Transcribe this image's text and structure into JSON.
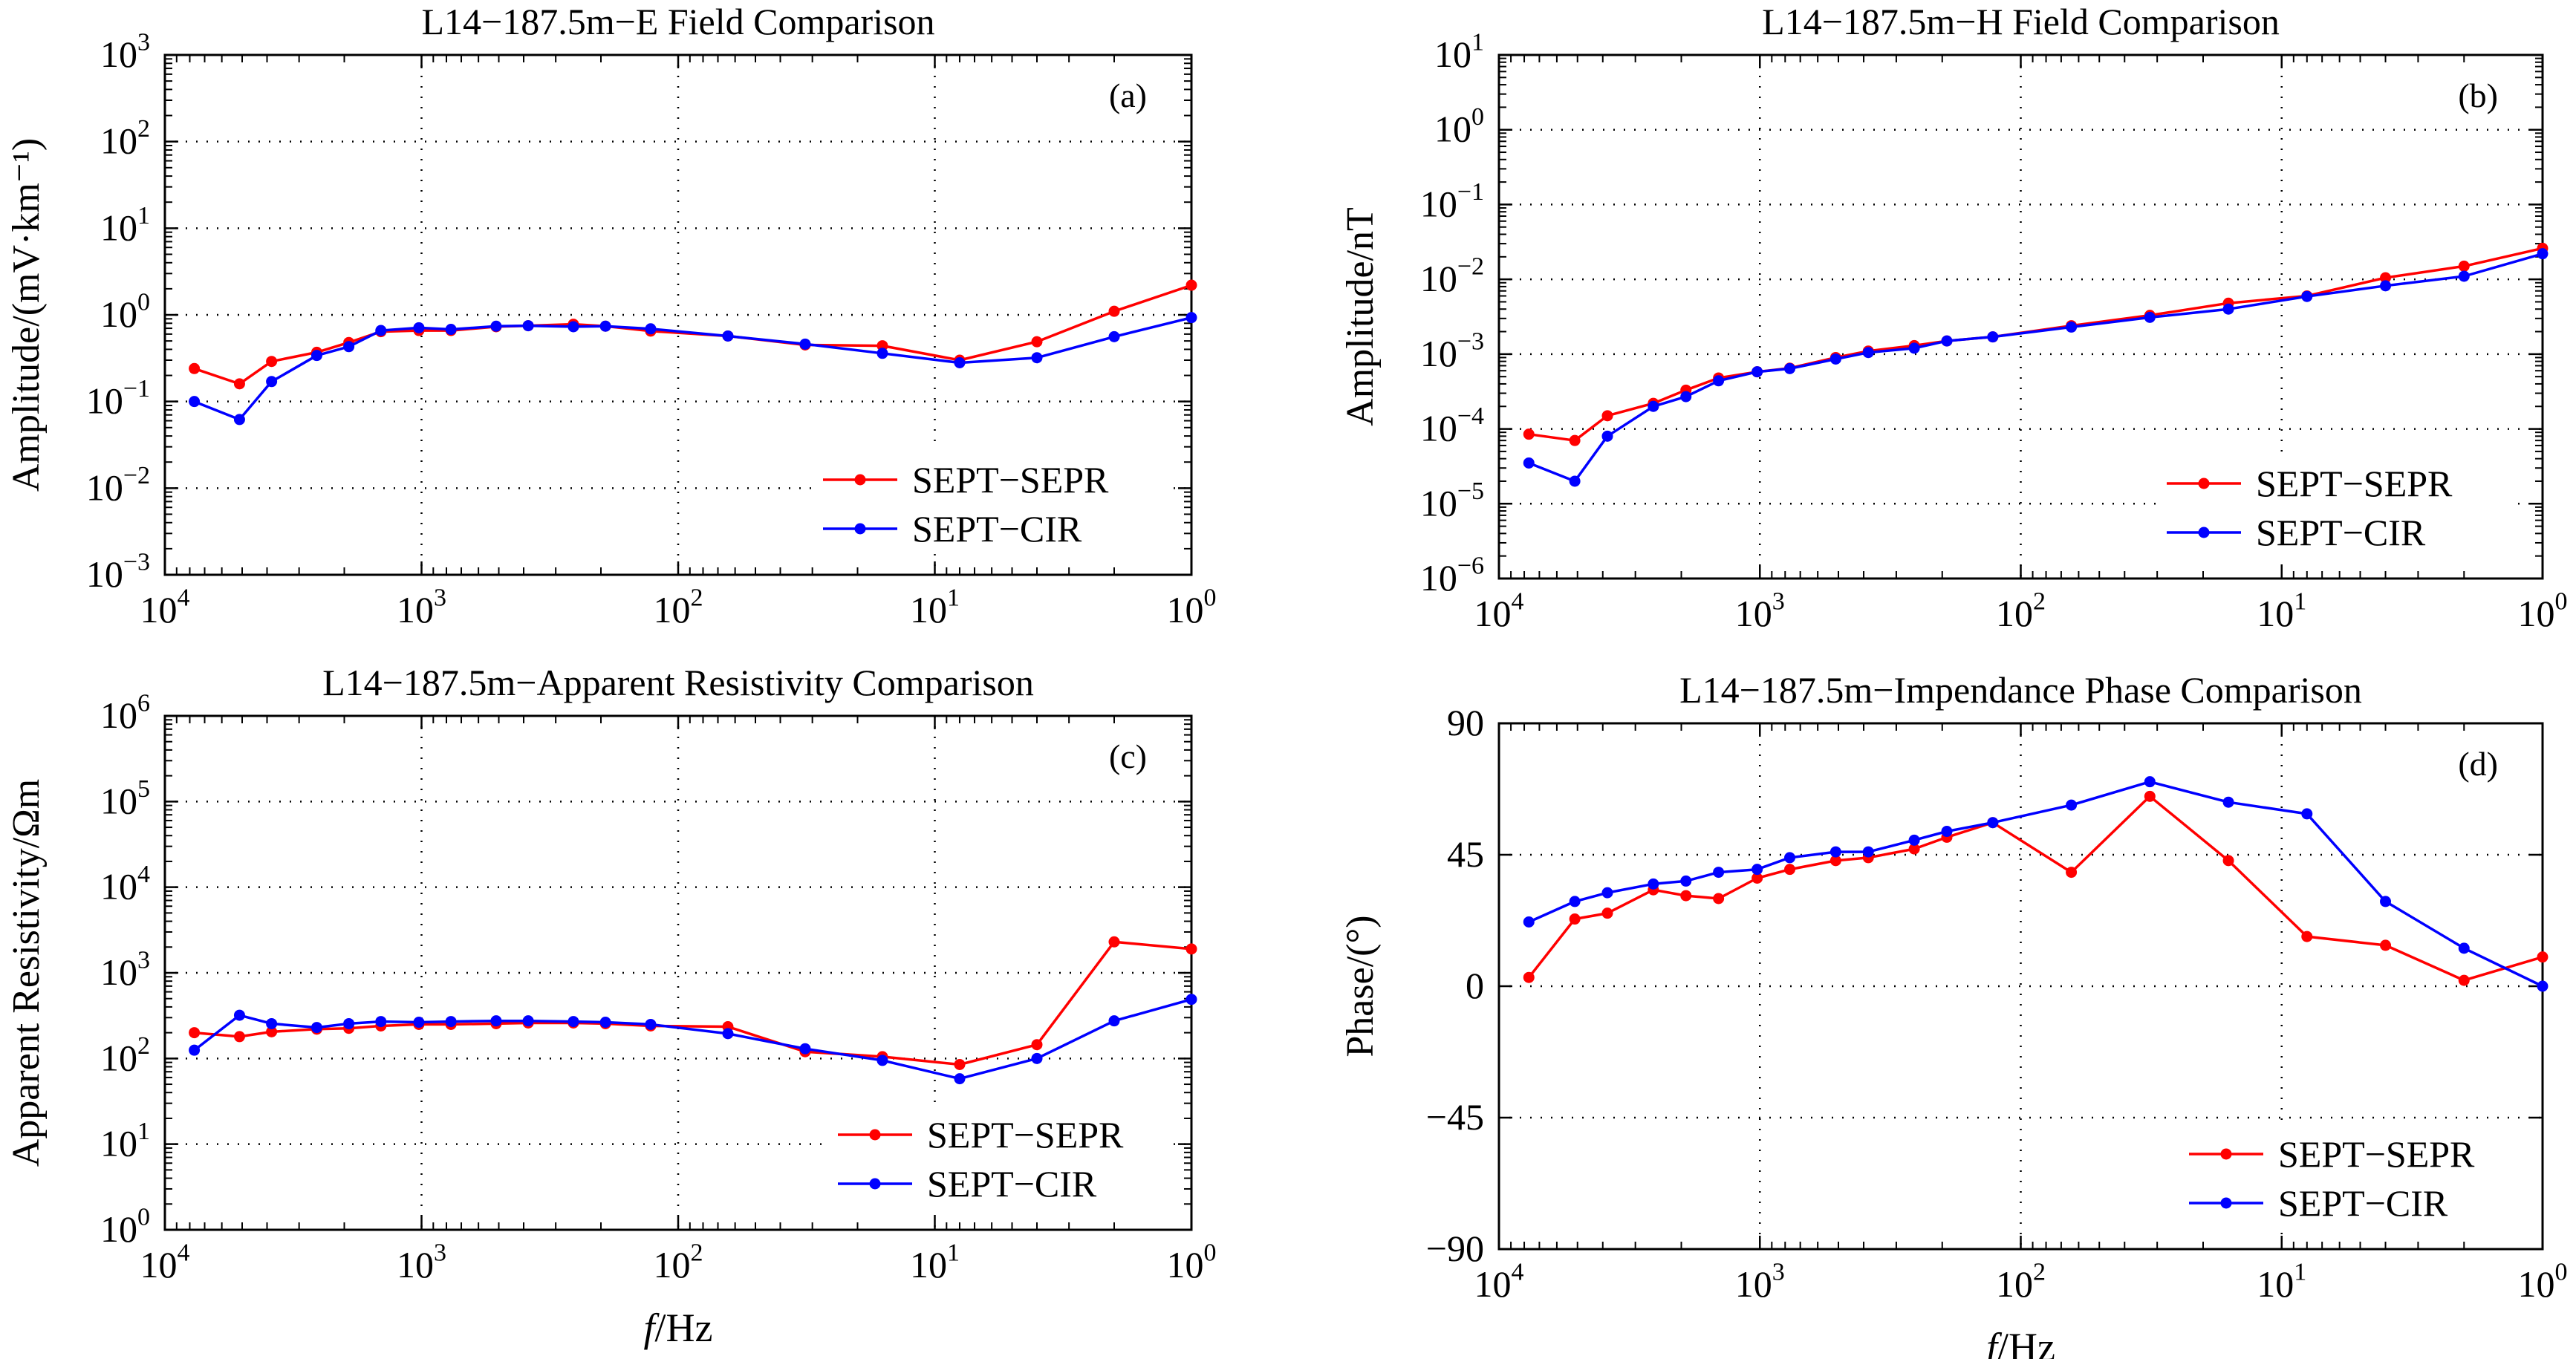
{
  "figure": {
    "x_axis_label": {
      "italic": "f",
      "rest": "/Hz"
    }
  },
  "colors": {
    "series_a": "#ff0000",
    "series_b": "#0000ff",
    "axes": "#000000"
  },
  "chart_data": [
    {
      "id": "a",
      "type": "line",
      "title": "L14−187.5m−E Field Comparison",
      "panel_label": "(a)",
      "ylabel": "Amplitude/(mV·km⁻¹)",
      "x_scale": "log",
      "x_reversed": true,
      "xlim": [
        10000,
        1
      ],
      "y_scale": "log",
      "ylim": [
        0.001,
        1000
      ],
      "xticks": [
        {
          "base": "10",
          "exp": "4"
        },
        {
          "base": "10",
          "exp": "3"
        },
        {
          "base": "10",
          "exp": "2"
        },
        {
          "base": "10",
          "exp": "1"
        },
        {
          "base": "10",
          "exp": "0"
        }
      ],
      "yticks": [
        {
          "base": "10",
          "exp": "−3"
        },
        {
          "base": "10",
          "exp": "−2"
        },
        {
          "base": "10",
          "exp": "−1"
        },
        {
          "base": "10",
          "exp": "0"
        },
        {
          "base": "10",
          "exp": "1"
        },
        {
          "base": "10",
          "exp": "2"
        },
        {
          "base": "10",
          "exp": "3"
        }
      ],
      "grid": true,
      "legend_position": "bottom-right",
      "series": [
        {
          "name": "SEPT−SEPR",
          "color": "#ff0000",
          "x": [
            7680,
            5120,
            3840,
            2560,
            1920,
            1440,
            1024,
            768,
            512,
            384,
            256,
            192,
            128,
            64,
            32,
            16,
            8,
            4,
            2,
            1
          ],
          "y": [
            0.24,
            0.16,
            0.29,
            0.37,
            0.48,
            0.64,
            0.66,
            0.66,
            0.73,
            0.75,
            0.78,
            0.74,
            0.65,
            0.57,
            0.45,
            0.44,
            0.3,
            0.49,
            1.1,
            2.2
          ]
        },
        {
          "name": "SEPT−CIR",
          "color": "#0000ff",
          "x": [
            7680,
            5120,
            3840,
            2560,
            1920,
            1440,
            1024,
            768,
            512,
            384,
            256,
            192,
            128,
            64,
            32,
            16,
            8,
            4,
            2,
            1
          ],
          "y": [
            0.1,
            0.062,
            0.17,
            0.34,
            0.43,
            0.66,
            0.71,
            0.68,
            0.74,
            0.75,
            0.73,
            0.74,
            0.69,
            0.57,
            0.46,
            0.36,
            0.28,
            0.32,
            0.56,
            0.93
          ]
        }
      ]
    },
    {
      "id": "b",
      "type": "line",
      "title": "L14−187.5m−H Field Comparison",
      "panel_label": "(b)",
      "ylabel": "Amplitude/nT",
      "x_scale": "log",
      "x_reversed": true,
      "xlim": [
        10000,
        1
      ],
      "y_scale": "log",
      "ylim": [
        1e-06,
        10
      ],
      "xticks": [
        {
          "base": "10",
          "exp": "4"
        },
        {
          "base": "10",
          "exp": "3"
        },
        {
          "base": "10",
          "exp": "2"
        },
        {
          "base": "10",
          "exp": "1"
        },
        {
          "base": "10",
          "exp": "0"
        }
      ],
      "yticks": [
        {
          "base": "10",
          "exp": "−6"
        },
        {
          "base": "10",
          "exp": "−5"
        },
        {
          "base": "10",
          "exp": "−4"
        },
        {
          "base": "10",
          "exp": "−3"
        },
        {
          "base": "10",
          "exp": "−2"
        },
        {
          "base": "10",
          "exp": "−1"
        },
        {
          "base": "10",
          "exp": "0"
        },
        {
          "base": "10",
          "exp": "1"
        }
      ],
      "grid": true,
      "legend_position": "bottom-right",
      "series": [
        {
          "name": "SEPT−SEPR",
          "color": "#ff0000",
          "x": [
            7680,
            5120,
            3840,
            2560,
            1920,
            1440,
            1024,
            768,
            512,
            384,
            256,
            192,
            128,
            64,
            32,
            16,
            8,
            4,
            2,
            1
          ],
          "y": [
            8.5e-05,
            7e-05,
            0.00015,
            0.00022,
            0.00033,
            0.00048,
            0.00058,
            0.00065,
            0.0009,
            0.0011,
            0.0013,
            0.0015,
            0.0017,
            0.0024,
            0.0033,
            0.0048,
            0.006,
            0.0105,
            0.015,
            0.026
          ]
        },
        {
          "name": "SEPT−CIR",
          "color": "#0000ff",
          "x": [
            7680,
            5120,
            3840,
            2560,
            1920,
            1440,
            1024,
            768,
            512,
            384,
            256,
            192,
            128,
            64,
            32,
            16,
            8,
            4,
            2,
            1
          ],
          "y": [
            3.5e-05,
            2e-05,
            8e-05,
            0.0002,
            0.00027,
            0.00044,
            0.00058,
            0.00064,
            0.00086,
            0.00105,
            0.0012,
            0.0015,
            0.0017,
            0.0023,
            0.0031,
            0.004,
            0.0059,
            0.0082,
            0.011,
            0.022
          ]
        }
      ]
    },
    {
      "id": "c",
      "type": "line",
      "title": "L14−187.5m−Apparent Resistivity Comparison",
      "panel_label": "(c)",
      "ylabel": "Apparent Resistivity/Ωm",
      "x_scale": "log",
      "x_reversed": true,
      "xlim": [
        10000,
        1
      ],
      "y_scale": "log",
      "ylim": [
        1,
        1000000
      ],
      "xticks": [
        {
          "base": "10",
          "exp": "4"
        },
        {
          "base": "10",
          "exp": "3"
        },
        {
          "base": "10",
          "exp": "2"
        },
        {
          "base": "10",
          "exp": "1"
        },
        {
          "base": "10",
          "exp": "0"
        }
      ],
      "yticks": [
        {
          "base": "10",
          "exp": "0"
        },
        {
          "base": "10",
          "exp": "1"
        },
        {
          "base": "10",
          "exp": "2"
        },
        {
          "base": "10",
          "exp": "3"
        },
        {
          "base": "10",
          "exp": "4"
        },
        {
          "base": "10",
          "exp": "5"
        },
        {
          "base": "10",
          "exp": "6"
        }
      ],
      "grid": true,
      "legend_position": "bottom-right",
      "series": [
        {
          "name": "SEPT−SEPR",
          "color": "#ff0000",
          "x": [
            7680,
            5120,
            3840,
            2560,
            1920,
            1440,
            1024,
            768,
            512,
            384,
            256,
            192,
            128,
            64,
            32,
            16,
            8,
            4,
            2,
            1
          ],
          "y": [
            200,
            180,
            205,
            220,
            225,
            240,
            250,
            250,
            255,
            260,
            260,
            255,
            240,
            235,
            120,
            105,
            85,
            145,
            2300,
            1900
          ]
        },
        {
          "name": "SEPT−CIR",
          "color": "#0000ff",
          "x": [
            7680,
            5120,
            3840,
            2560,
            1920,
            1440,
            1024,
            768,
            512,
            384,
            256,
            192,
            128,
            64,
            32,
            16,
            8,
            4,
            2,
            1
          ],
          "y": [
            125,
            320,
            255,
            230,
            255,
            270,
            265,
            270,
            275,
            275,
            270,
            265,
            250,
            195,
            130,
            95,
            58,
            100,
            275,
            490
          ]
        }
      ]
    },
    {
      "id": "d",
      "type": "line",
      "title": "L14−187.5m−Impendance Phase Comparison",
      "panel_label": "(d)",
      "ylabel": "Phase/(°)",
      "x_scale": "log",
      "x_reversed": true,
      "xlim": [
        10000,
        1
      ],
      "y_scale": "linear",
      "ylim": [
        -90,
        90
      ],
      "xticks": [
        {
          "base": "10",
          "exp": "4"
        },
        {
          "base": "10",
          "exp": "3"
        },
        {
          "base": "10",
          "exp": "2"
        },
        {
          "base": "10",
          "exp": "1"
        },
        {
          "base": "10",
          "exp": "0"
        }
      ],
      "yticks": [
        {
          "value": -90,
          "label": "−90"
        },
        {
          "value": -45,
          "label": "−45"
        },
        {
          "value": 0,
          "label": "0"
        },
        {
          "value": 45,
          "label": "45"
        },
        {
          "value": 90,
          "label": "90"
        }
      ],
      "grid": true,
      "legend_position": "bottom-right",
      "series": [
        {
          "name": "SEPT−SEPR",
          "color": "#ff0000",
          "x": [
            7680,
            5120,
            3840,
            2560,
            1920,
            1440,
            1024,
            768,
            512,
            384,
            256,
            192,
            128,
            64,
            32,
            16,
            8,
            4,
            2,
            1
          ],
          "y": [
            3,
            23,
            25,
            33,
            31,
            30,
            37,
            40,
            43,
            44,
            47,
            51,
            56,
            39,
            65,
            43,
            17,
            14,
            2,
            10
          ]
        },
        {
          "name": "SEPT−CIR",
          "color": "#0000ff",
          "x": [
            7680,
            5120,
            3840,
            2560,
            1920,
            1440,
            1024,
            768,
            512,
            384,
            256,
            192,
            128,
            64,
            32,
            16,
            8,
            4,
            2,
            1
          ],
          "y": [
            22,
            29,
            32,
            35,
            36,
            39,
            40,
            44,
            46,
            46,
            50,
            53,
            56,
            62,
            70,
            63,
            59,
            29,
            13,
            0
          ]
        }
      ]
    }
  ]
}
